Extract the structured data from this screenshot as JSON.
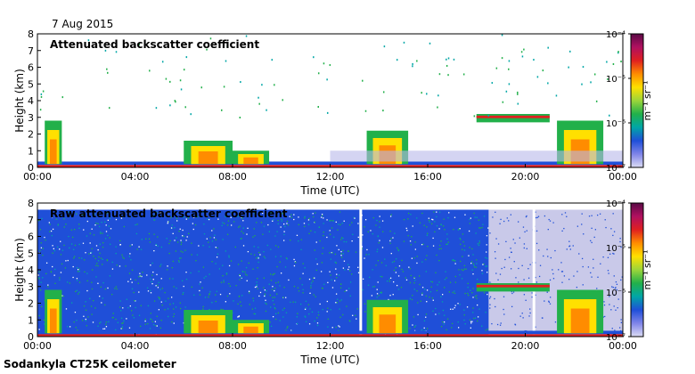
{
  "date_label": "7 Aug 2015",
  "footer_label": "Sodankyla CT25K ceilometer",
  "colorbar": {
    "unit": "m⁻¹ sr⁻¹",
    "ticks": [
      {
        "label": "10⁻⁴",
        "value": -4
      },
      {
        "label": "10⁻⁵",
        "value": -5
      },
      {
        "label": "10⁻⁶",
        "value": -6
      },
      {
        "label": "10⁻⁷",
        "value": -7
      }
    ],
    "colors": [
      "#5a0a46",
      "#b01060",
      "#e02020",
      "#ff8c00",
      "#ffe000",
      "#9bd53a",
      "#22b04a",
      "#00a6a6",
      "#1f4fd8",
      "#7f84e8",
      "#dcdcf4"
    ]
  },
  "chart_data": [
    {
      "type": "heatmap",
      "title": "Attenuated backscatter coefficient",
      "xlabel": "Time (UTC)",
      "ylabel": "Height (km)",
      "xlim": [
        0,
        24
      ],
      "ylim": [
        0,
        8
      ],
      "xticks": [
        "00:00",
        "04:00",
        "08:00",
        "12:00",
        "16:00",
        "20:00",
        "00:00"
      ],
      "yticks": [
        0,
        1,
        2,
        3,
        4,
        5,
        6,
        7,
        8
      ],
      "colorbar_range": [
        -7,
        -4
      ],
      "features": {
        "surface_layer_height_km": 0.15,
        "low_clouds_km": [
          {
            "t0": 0.3,
            "t1": 1.0,
            "top": 2.8
          },
          {
            "t0": 6.0,
            "t1": 8.0,
            "top": 1.6
          },
          {
            "t0": 8.0,
            "t1": 9.5,
            "top": 1.0
          },
          {
            "t0": 13.5,
            "t1": 15.2,
            "top": 2.2
          },
          {
            "t0": 21.3,
            "t1": 23.2,
            "top": 2.8
          }
        ],
        "cloud_layer_3km": [
          18.0,
          21.0
        ]
      }
    },
    {
      "type": "heatmap",
      "title": "Raw attenuated backscatter coefficient",
      "xlabel": "Time (UTC)",
      "ylabel": "Height (km)",
      "xlim": [
        0,
        24
      ],
      "ylim": [
        0,
        8
      ],
      "xticks": [
        "00:00",
        "04:00",
        "08:00",
        "12:00",
        "16:00",
        "20:00",
        "00:00"
      ],
      "yticks": [
        0,
        1,
        2,
        3,
        4,
        5,
        6,
        7,
        8
      ],
      "colorbar_range": [
        -7,
        -4
      ],
      "features": {
        "noise_region_until_h": 18.5,
        "clear_gaps_h": [
          13.2,
          20.3
        ]
      }
    }
  ]
}
